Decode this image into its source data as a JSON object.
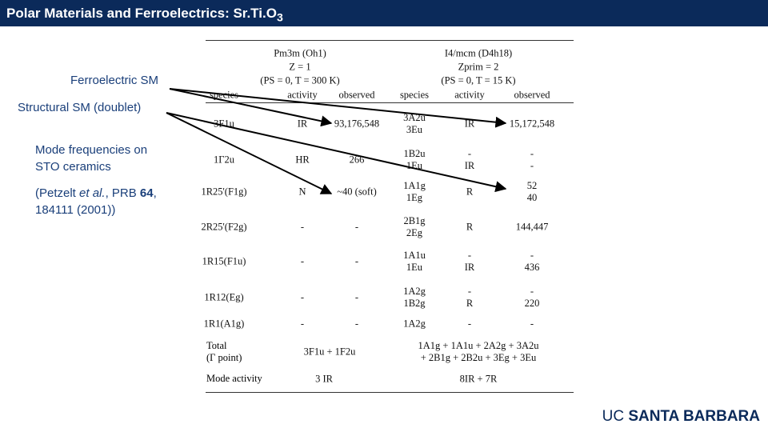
{
  "header": {
    "title": "Polar Materials and Ferroelectrics: Sr.Ti.O",
    "title_sub": "3"
  },
  "labels": {
    "ferroelectric": "Ferroelectric SM",
    "structural": "Structural SM (doublet)",
    "mode_freq": [
      "Mode frequencies on",
      "STO ceramics"
    ],
    "citation": [
      "(Petzelt ",
      "et al.",
      ", PRB ",
      "64",
      ", 184111 (2001))"
    ]
  },
  "table": {
    "groups": [
      {
        "symmetry": "Pm3m (Oh1)",
        "z": "Z = 1",
        "conditions": "(PS = 0, T = 300 K)"
      },
      {
        "symmetry": "I4/mcm (D4h18)",
        "z": "Zprim = 2",
        "conditions": "(PS = 0, T = 15 K)"
      }
    ],
    "columns": [
      "species",
      "activity",
      "observed",
      "species",
      "activity",
      "observed"
    ],
    "rows": [
      [
        "3F1u",
        "IR",
        "93,176,548",
        [
          "3A2u",
          "3Eu"
        ],
        "IR",
        "15,172,548"
      ],
      [
        "1Γ2u",
        "HR",
        "266",
        [
          "1B2u",
          "1Eu"
        ],
        [
          "-",
          "IR"
        ],
        [
          "-",
          "-"
        ]
      ],
      [
        "1R25'(F1g)",
        "N",
        "~40 (soft)",
        [
          "1A1g",
          "1Eg"
        ],
        "R",
        [
          "52",
          "40"
        ]
      ],
      [
        "2R25'(F2g)",
        "-",
        "-",
        [
          "2B1g",
          "2Eg"
        ],
        "R",
        "144,447"
      ],
      [
        "1R15(F1u)",
        "-",
        "-",
        [
          "1A1u",
          "1Eu"
        ],
        [
          "-",
          "IR"
        ],
        [
          "-",
          "436"
        ]
      ],
      [
        "1R12(Eg)",
        "-",
        "-",
        [
          "1A2g",
          "1B2g"
        ],
        [
          "-",
          "R"
        ],
        [
          "-",
          "220"
        ]
      ],
      [
        "1R1(A1g)",
        "-",
        "-",
        "1A2g",
        "-",
        "-"
      ]
    ],
    "total": {
      "label": [
        "Total",
        "(Γ point)"
      ],
      "left": "3F1u + 1F2u",
      "right": [
        "1A1g + 1A1u + 2A2g + 3A2u",
        "+ 2B1g + 2B2u + 3Eg + 3Eu"
      ]
    },
    "mode_activity": {
      "label": "Mode activity",
      "left": "3 IR",
      "right": "8IR + 7R"
    }
  },
  "footer": {
    "logo_light": "UC",
    "logo_bold": "SANTA BARBARA"
  }
}
